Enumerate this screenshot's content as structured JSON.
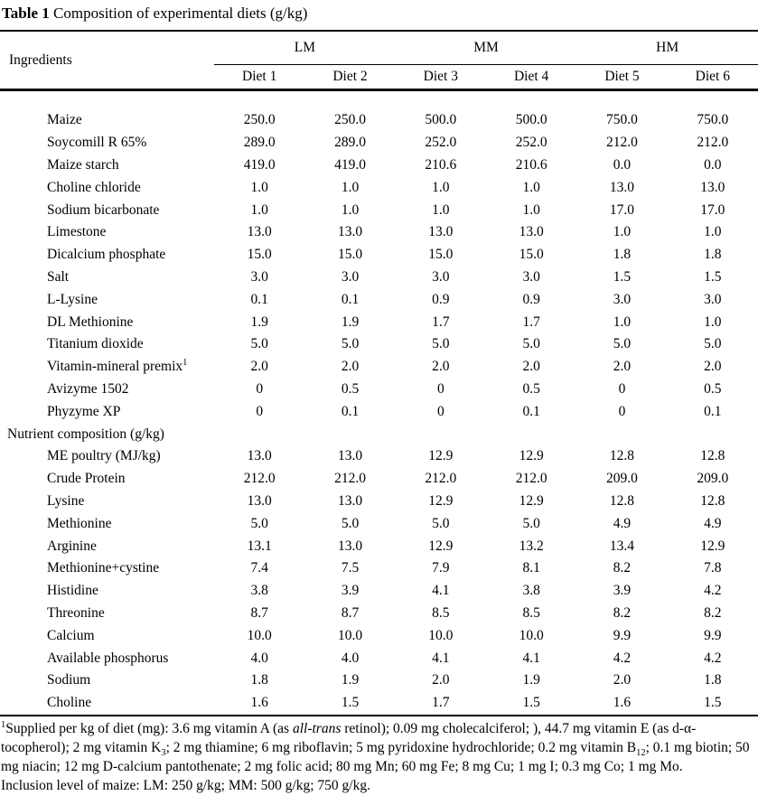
{
  "colors": {
    "text": "#000000",
    "background": "#ffffff"
  },
  "title": {
    "label": "Table 1",
    "text": " Composition of experimental diets (g/kg)"
  },
  "table": {
    "ingredients_header": "Ingredients",
    "groups": [
      {
        "label": "LM",
        "diets": [
          "Diet 1",
          "Diet 2"
        ]
      },
      {
        "label": "MM",
        "diets": [
          "Diet 3",
          "Diet 4"
        ]
      },
      {
        "label": "HM",
        "diets": [
          "Diet 5",
          "Diet 6"
        ]
      }
    ],
    "rows": [
      {
        "label": "Maize",
        "values": [
          "250.0",
          "250.0",
          "500.0",
          "500.0",
          "750.0",
          "750.0"
        ]
      },
      {
        "label": "Soycomill R 65%",
        "values": [
          "289.0",
          "289.0",
          "252.0",
          "252.0",
          "212.0",
          "212.0"
        ]
      },
      {
        "label": "Maize starch",
        "values": [
          "419.0",
          "419.0",
          "210.6",
          "210.6",
          "0.0",
          "0.0"
        ]
      },
      {
        "label": "Choline chloride",
        "values": [
          "1.0",
          "1.0",
          "1.0",
          "1.0",
          "13.0",
          "13.0"
        ]
      },
      {
        "label": "Sodium bicarbonate",
        "values": [
          "1.0",
          "1.0",
          "1.0",
          "1.0",
          "17.0",
          "17.0"
        ]
      },
      {
        "label": "Limestone",
        "values": [
          "13.0",
          "13.0",
          "13.0",
          "13.0",
          "1.0",
          "1.0"
        ]
      },
      {
        "label": "Dicalcium phosphate",
        "values": [
          "15.0",
          "15.0",
          "15.0",
          "15.0",
          "1.8",
          "1.8"
        ]
      },
      {
        "label": "Salt",
        "values": [
          "3.0",
          "3.0",
          "3.0",
          "3.0",
          "1.5",
          "1.5"
        ]
      },
      {
        "label": "L-Lysine",
        "values": [
          "0.1",
          "0.1",
          "0.9",
          "0.9",
          "3.0",
          "3.0"
        ]
      },
      {
        "label": "DL Methionine",
        "values": [
          "1.9",
          "1.9",
          "1.7",
          "1.7",
          "1.0",
          "1.0"
        ]
      },
      {
        "label": "Titanium dioxide",
        "values": [
          "5.0",
          "5.0",
          "5.0",
          "5.0",
          "5.0",
          "5.0"
        ]
      },
      {
        "label": "Vitamin-mineral premix",
        "sup": "1",
        "values": [
          "2.0",
          "2.0",
          "2.0",
          "2.0",
          "2.0",
          "2.0"
        ]
      },
      {
        "label": "Avizyme 1502",
        "values": [
          "0",
          "0.5",
          "0",
          "0.5",
          "0",
          "0.5"
        ]
      },
      {
        "label": "Phyzyme XP",
        "values": [
          "0",
          "0.1",
          "0",
          "0.1",
          "0",
          "0.1"
        ]
      },
      {
        "label": "Nutrient composition (g/kg)",
        "type": "section",
        "values": []
      },
      {
        "label": "ME poultry (MJ/kg)",
        "values": [
          "13.0",
          "13.0",
          "12.9",
          "12.9",
          "12.8",
          "12.8"
        ]
      },
      {
        "label": "Crude Protein",
        "values": [
          "212.0",
          "212.0",
          "212.0",
          "212.0",
          "209.0",
          "209.0"
        ]
      },
      {
        "label": "Lysine",
        "values": [
          "13.0",
          "13.0",
          "12.9",
          "12.9",
          "12.8",
          "12.8"
        ]
      },
      {
        "label": "Methionine",
        "values": [
          "5.0",
          "5.0",
          "5.0",
          "5.0",
          "4.9",
          "4.9"
        ]
      },
      {
        "label": "Arginine",
        "values": [
          "13.1",
          "13.0",
          "12.9",
          "13.2",
          "13.4",
          "12.9"
        ]
      },
      {
        "label": "Methionine+cystine",
        "values": [
          "7.4",
          "7.5",
          "7.9",
          "8.1",
          "8.2",
          "7.8"
        ]
      },
      {
        "label": "Histidine",
        "values": [
          "3.8",
          "3.9",
          "4.1",
          "3.8",
          "3.9",
          "4.2"
        ]
      },
      {
        "label": "Threonine",
        "values": [
          "8.7",
          "8.7",
          "8.5",
          "8.5",
          "8.2",
          "8.2"
        ]
      },
      {
        "label": "Calcium",
        "values": [
          "10.0",
          "10.0",
          "10.0",
          "10.0",
          "9.9",
          "9.9"
        ]
      },
      {
        "label": "Available phosphorus",
        "values": [
          "4.0",
          "4.0",
          "4.1",
          "4.1",
          "4.2",
          "4.2"
        ]
      },
      {
        "label": "Sodium",
        "values": [
          "1.8",
          "1.9",
          "2.0",
          "1.9",
          "2.0",
          "1.8"
        ]
      },
      {
        "label": "Choline",
        "values": [
          "1.6",
          "1.5",
          "1.7",
          "1.5",
          "1.6",
          "1.5"
        ]
      }
    ]
  },
  "footnotes": {
    "supplied": [
      {
        "style": "sup",
        "text": "1"
      },
      {
        "text": "Supplied per kg of diet (mg): 3.6 mg vitamin A (as "
      },
      {
        "style": "i",
        "text": "all-trans"
      },
      {
        "text": " retinol); 0.09 mg cholecalciferol; ), 44.7 mg vitamin E (as d-α-tocopherol); 2 mg vitamin K"
      },
      {
        "style": "sub",
        "text": "3"
      },
      {
        "text": "; 2 mg thiamine; 6 mg riboflavin; 5 mg pyridoxine hydrochloride; 0.2 mg vitamin B"
      },
      {
        "style": "sub",
        "text": "12"
      },
      {
        "text": "; 0.1 mg biotin; 50 mg niacin; 12 mg D-calcium pantothenate; 2 mg folic acid; 80 mg Mn; 60 mg Fe; 8 mg Cu; 1 mg I; 0.3 mg Co; 1 mg Mo."
      }
    ],
    "inclusion": "Inclusion level of maize: LM: 250 g/kg; MM: 500 g/kg; 750 g/kg."
  }
}
